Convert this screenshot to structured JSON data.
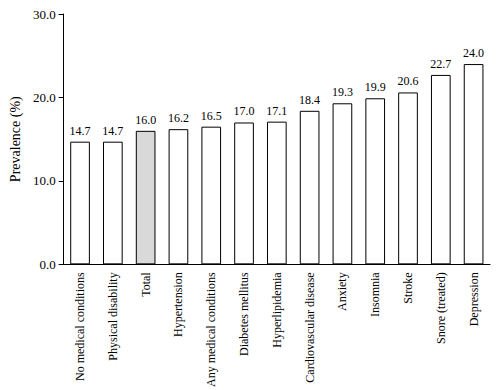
{
  "chart_data": {
    "type": "bar",
    "y_label": "Prevalence (%)",
    "categories": [
      "No medical conditions",
      "Physical disability",
      "Total",
      "Hypertension",
      "Any medical conditions",
      "Diabetes mellitus",
      "Hyperlipidemia",
      "Cardiovascular disease",
      "Anxiety",
      "Insomnia",
      "Stroke",
      "Snore (treated)",
      "Depression"
    ],
    "values": [
      14.7,
      14.7,
      16.0,
      16.2,
      16.5,
      17.0,
      17.1,
      18.4,
      19.3,
      19.9,
      20.6,
      22.7,
      24.0
    ],
    "value_labels": [
      "14.7",
      "14.7",
      "16.0",
      "16.2",
      "16.5",
      "17.0",
      "17.1",
      "18.4",
      "19.3",
      "19.9",
      "20.6",
      "22.7",
      "24.0"
    ],
    "colors": [
      "#ffffff",
      "#ffffff",
      "#d9d9d9",
      "#ffffff",
      "#ffffff",
      "#ffffff",
      "#ffffff",
      "#ffffff",
      "#ffffff",
      "#ffffff",
      "#ffffff",
      "#ffffff",
      "#ffffff"
    ],
    "ylim": [
      0,
      30
    ],
    "yticks": [
      {
        "value": 0,
        "label": "0.0"
      },
      {
        "value": 10,
        "label": "10.0"
      },
      {
        "value": 20,
        "label": "20.0"
      },
      {
        "value": 30,
        "label": "30.0"
      }
    ],
    "data_labels": true,
    "grid": false
  }
}
